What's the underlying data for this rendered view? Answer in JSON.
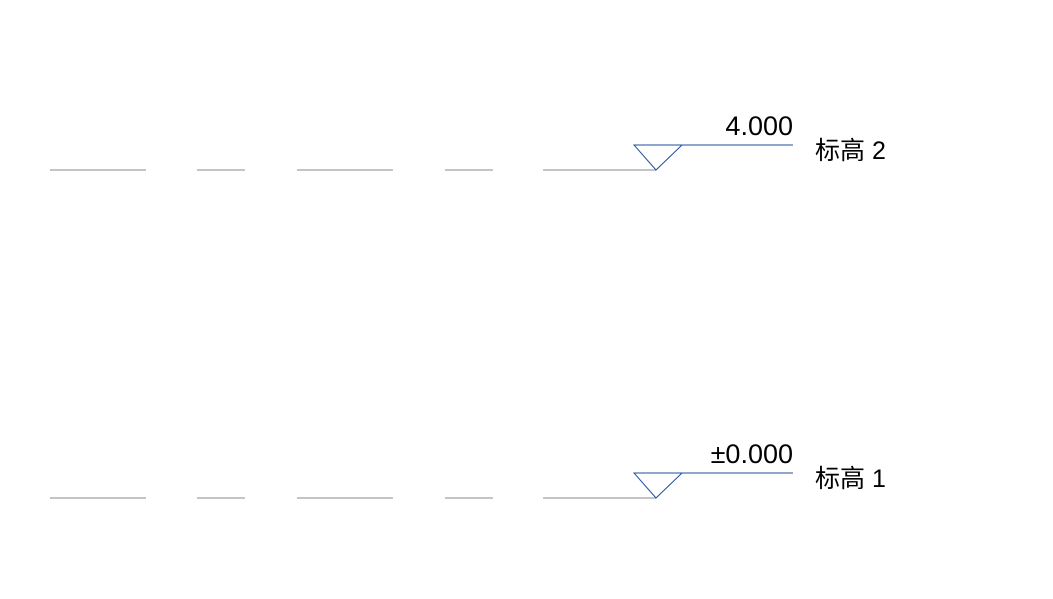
{
  "levels": [
    {
      "elevation": "4.000",
      "name": "标高 2"
    },
    {
      "elevation": "±0.000",
      "name": "标高 1"
    }
  ]
}
